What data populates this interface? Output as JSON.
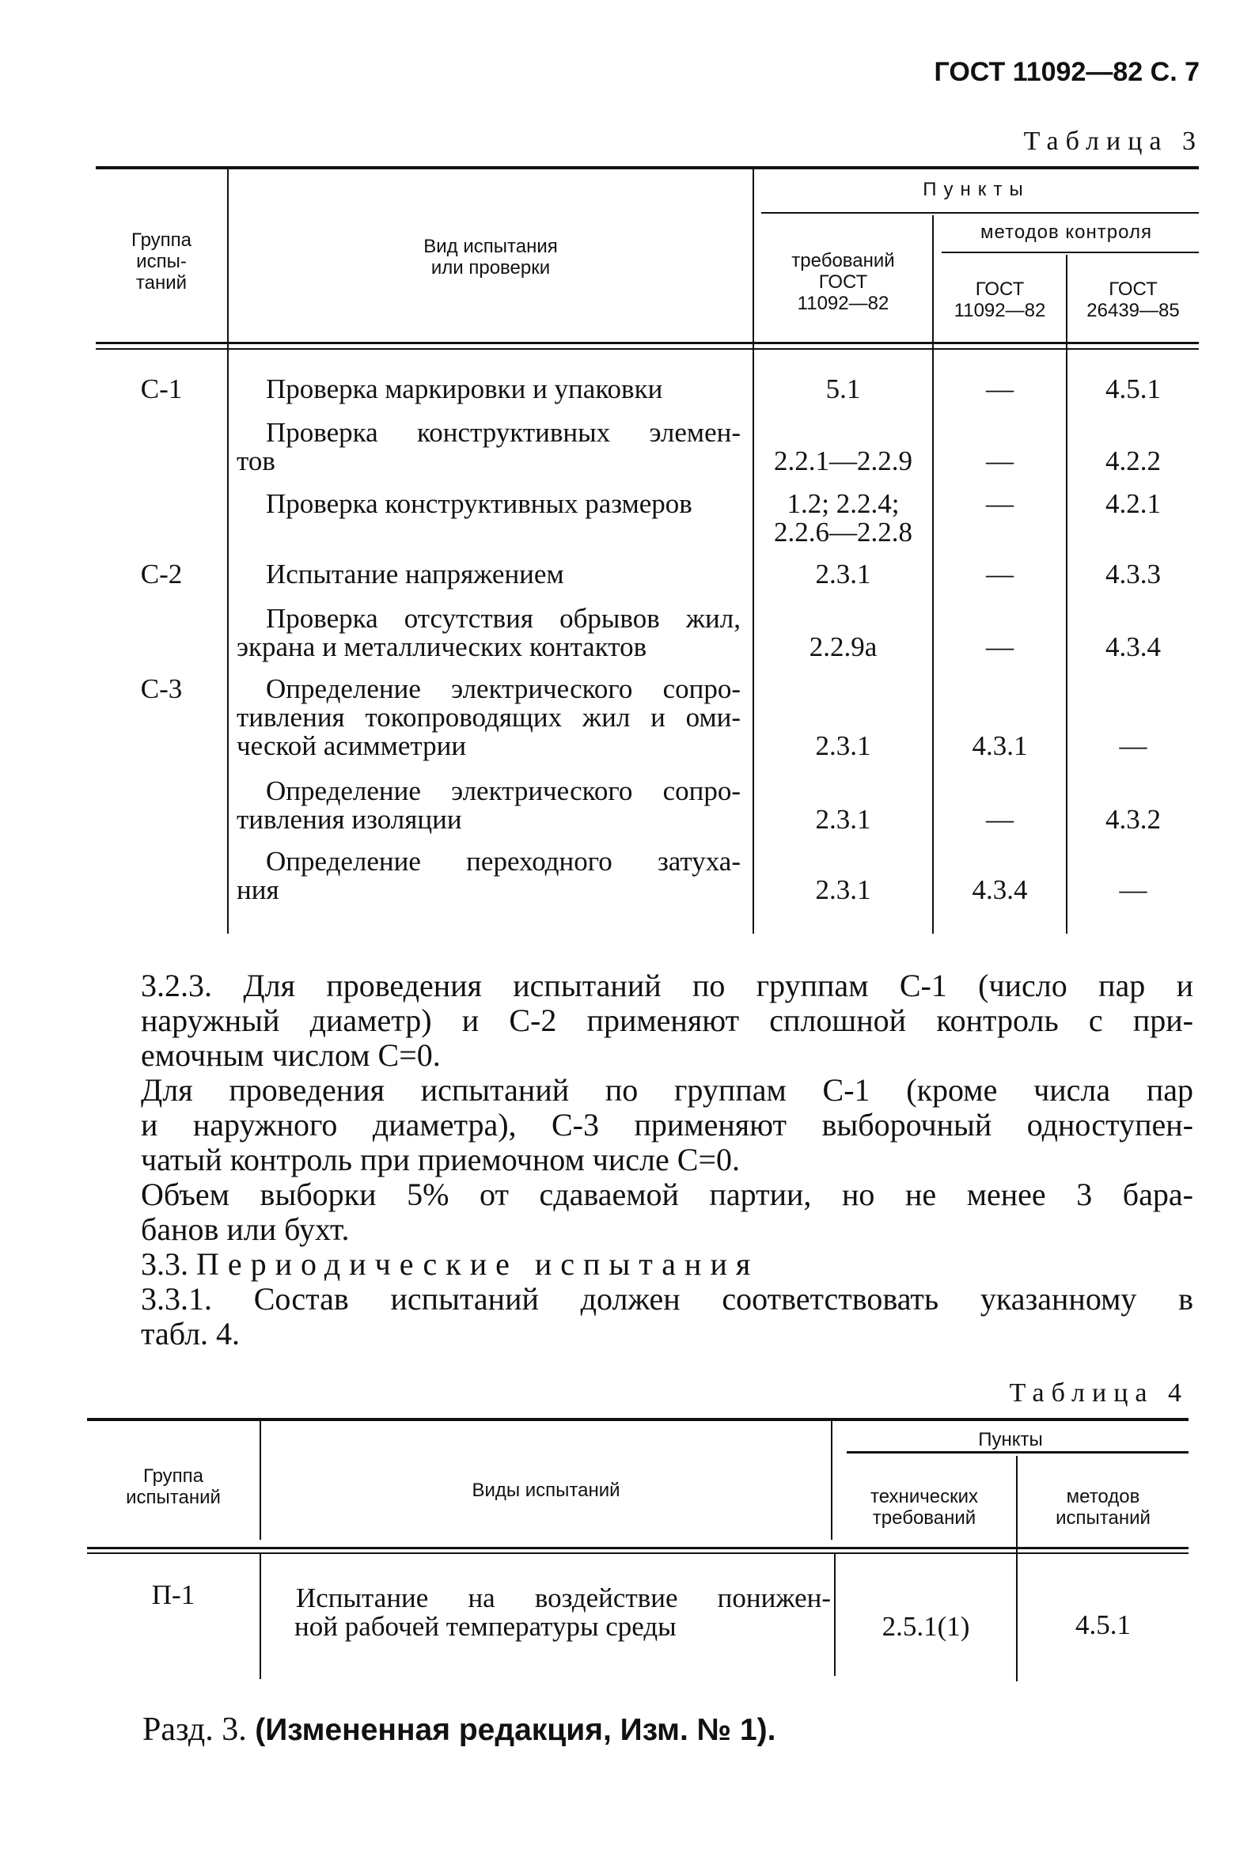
{
  "page_header": "ГОСТ 11092—82 С. 7",
  "table3": {
    "caption": "Таблица 3",
    "headers": {
      "group": [
        "Группа",
        "испы-",
        "таний"
      ],
      "kind": [
        "Вид испытания",
        "или проверки"
      ],
      "points": "Пункты",
      "requirements": [
        "требований",
        "ГОСТ",
        "11092—82"
      ],
      "methods": "методов контроля",
      "methods_gost1": [
        "ГОСТ",
        "11092—82"
      ],
      "methods_gost2": [
        "ГОСТ",
        "26439—85"
      ]
    },
    "rows": [
      {
        "group": "С-1",
        "lines": [
          "Проверка маркировки и упаковки"
        ],
        "req": [
          "5.1"
        ],
        "m1": "—",
        "m2": "4.5.1"
      },
      {
        "group": "",
        "lines": [
          "Проверка конструктивных элемен-",
          "тов"
        ],
        "req": [
          "2.2.1—2.2.9"
        ],
        "m1": "—",
        "m2": "4.2.2"
      },
      {
        "group": "",
        "lines": [
          "Проверка конструктивных размеров"
        ],
        "req": [
          "1.2; 2.2.4;",
          "2.2.6—2.2.8"
        ],
        "m1": "—",
        "m2": "4.2.1"
      },
      {
        "group": "С-2",
        "lines": [
          "Испытание напряжением"
        ],
        "req": [
          "2.3.1"
        ],
        "m1": "—",
        "m2": "4.3.3"
      },
      {
        "group": "",
        "lines": [
          "Проверка отсутствия обрывов жил,",
          "экрана и металлических контактов"
        ],
        "req": [
          "2.2.9а"
        ],
        "m1": "—",
        "m2": "4.3.4"
      },
      {
        "group": "С-3",
        "lines": [
          "Определение электрического сопро-",
          "тивления токопроводящих жил и оми-",
          "ческой асимметрии"
        ],
        "req": [
          "2.3.1"
        ],
        "m1": "4.3.1",
        "m2": "—"
      },
      {
        "group": "",
        "lines": [
          "Определение электрического сопро-",
          "тивления изоляции"
        ],
        "req": [
          "2.3.1"
        ],
        "m1": "—",
        "m2": "4.3.2"
      },
      {
        "group": "",
        "lines": [
          "Определение переходного затуха-",
          "ния"
        ],
        "req": [
          "2.3.1"
        ],
        "m1": "4.3.4",
        "m2": "—"
      }
    ]
  },
  "paragraphs": [
    [
      "3.2.3. Для проведения испытаний по группам С-1 (число пар и",
      "наружный диаметр) и С-2 применяют сплошной контроль с при-",
      "емочным числом C=0."
    ],
    [
      "Для проведения испытаний по группам С-1 (кроме числа пар",
      "и наружного диаметра), С-3 применяют выборочный одноступен-",
      "чатый контроль при приемочном числе C=0."
    ],
    [
      "Объем выборки 5% от сдаваемой партии, но не менее 3 бара-",
      "банов или бухт."
    ]
  ],
  "section_3_3": {
    "number": "3.3.",
    "title": "Периодические испытания"
  },
  "paragraph_3_3_1": [
    "3.3.1. Состав испытаний должен соответствовать указанному в",
    "табл. 4."
  ],
  "table4": {
    "caption": "Таблица 4",
    "headers": {
      "group": [
        "Группа",
        "испытаний"
      ],
      "kind": "Виды испытаний",
      "points": "Пункты",
      "tech": [
        "технических",
        "требований"
      ],
      "methods": [
        "методов",
        "испытаний"
      ]
    },
    "rows": [
      {
        "group": "П-1",
        "lines": [
          "Испытание на воздействие понижен-",
          "ной рабочей температуры среды"
        ],
        "tech": "2.5.1(1)",
        "methods": "4.5.1"
      }
    ]
  },
  "footer": {
    "prefix": "Разд. 3.",
    "note": "(Измененная редакция, Изм. № 1)."
  }
}
